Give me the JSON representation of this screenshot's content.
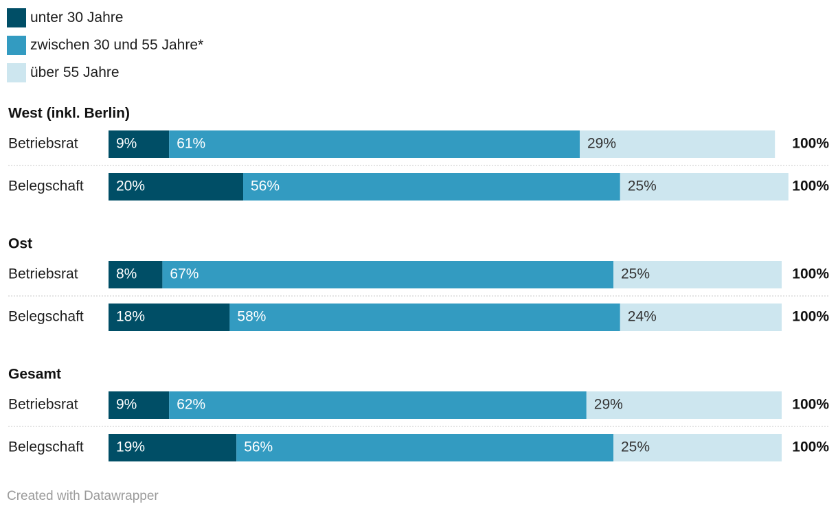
{
  "chart_data": {
    "type": "bar",
    "orientation": "horizontal-stacked",
    "legend": [
      {
        "label": "unter 30 Jahre",
        "color": "#004e66"
      },
      {
        "label": "zwischen 30 und 55 Jahre*",
        "color": "#339bc1"
      },
      {
        "label": "über 55 Jahre",
        "color": "#cde6ef"
      }
    ],
    "label_colors": [
      "#ffffff",
      "#ffffff",
      "#333333"
    ],
    "groups": [
      {
        "title": "West (inkl. Berlin)",
        "rows": [
          {
            "label": "Betriebsrat",
            "values": [
              9,
              61,
              29
            ],
            "total": "100%"
          },
          {
            "label": "Belegschaft",
            "values": [
              20,
              56,
              25
            ],
            "total": "100%"
          }
        ]
      },
      {
        "title": "Ost",
        "rows": [
          {
            "label": "Betriebsrat",
            "values": [
              8,
              67,
              25
            ],
            "total": "100%"
          },
          {
            "label": "Belegschaft",
            "values": [
              18,
              58,
              24
            ],
            "total": "100%"
          }
        ]
      },
      {
        "title": "Gesamt",
        "rows": [
          {
            "label": "Betriebsrat",
            "values": [
              9,
              62,
              29
            ],
            "total": "100%"
          },
          {
            "label": "Belegschaft",
            "values": [
              19,
              56,
              25
            ],
            "total": "100%"
          }
        ]
      }
    ],
    "value_suffix": "%",
    "grid": false
  },
  "footer": {
    "credit": "Created with Datawrapper"
  }
}
